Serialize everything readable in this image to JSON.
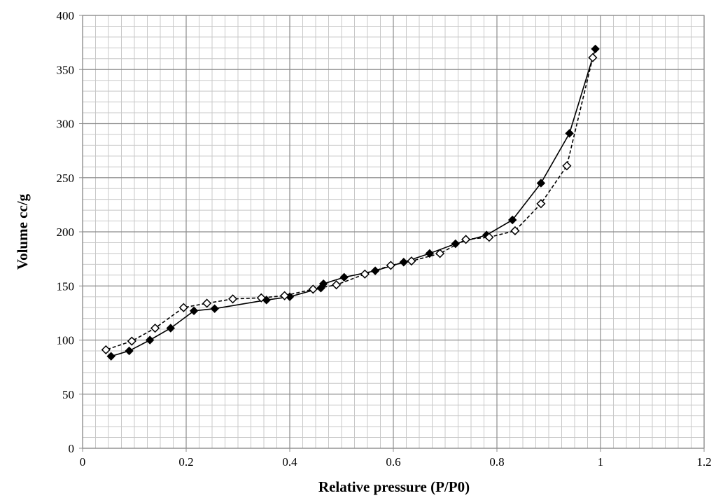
{
  "chart_data": {
    "type": "scatter",
    "title": "",
    "xlabel": "Relative pressure (P/P0)",
    "ylabel": "Volume cc/g",
    "xlim": [
      0,
      1.2
    ],
    "ylim": [
      0,
      400
    ],
    "x_ticks": [
      "0",
      "0.2",
      "0.4",
      "0.6",
      "0.8",
      "1",
      "1.2"
    ],
    "y_ticks": [
      "0",
      "50",
      "100",
      "150",
      "200",
      "250",
      "300",
      "350",
      "400"
    ],
    "grid": "major and minor",
    "legend": "none",
    "series": [
      {
        "line_style": "solid",
        "marker": "filled-diamond",
        "color": "#000000",
        "points": [
          [
            0.055,
            85
          ],
          [
            0.09,
            90
          ],
          [
            0.13,
            100
          ],
          [
            0.17,
            111
          ],
          [
            0.215,
            127
          ],
          [
            0.255,
            129
          ],
          [
            0.355,
            137
          ],
          [
            0.4,
            140
          ],
          [
            0.46,
            148
          ],
          [
            0.465,
            152
          ],
          [
            0.505,
            158
          ],
          [
            0.565,
            164
          ],
          [
            0.62,
            172
          ],
          [
            0.67,
            180
          ],
          [
            0.72,
            189
          ],
          [
            0.78,
            197
          ],
          [
            0.83,
            211
          ],
          [
            0.885,
            245
          ],
          [
            0.94,
            291
          ],
          [
            0.99,
            369
          ]
        ]
      },
      {
        "line_style": "dashed",
        "marker": "open-diamond",
        "color": "#000000",
        "points": [
          [
            0.985,
            361
          ],
          [
            0.935,
            261
          ],
          [
            0.885,
            226
          ],
          [
            0.835,
            201
          ],
          [
            0.785,
            195
          ],
          [
            0.74,
            193
          ],
          [
            0.69,
            180
          ],
          [
            0.635,
            173
          ],
          [
            0.595,
            169
          ],
          [
            0.545,
            161
          ],
          [
            0.49,
            151
          ],
          [
            0.445,
            147
          ],
          [
            0.39,
            141
          ],
          [
            0.345,
            139
          ],
          [
            0.29,
            138
          ],
          [
            0.24,
            134
          ],
          [
            0.195,
            130
          ],
          [
            0.14,
            111
          ],
          [
            0.095,
            99
          ],
          [
            0.045,
            91
          ]
        ]
      }
    ]
  }
}
